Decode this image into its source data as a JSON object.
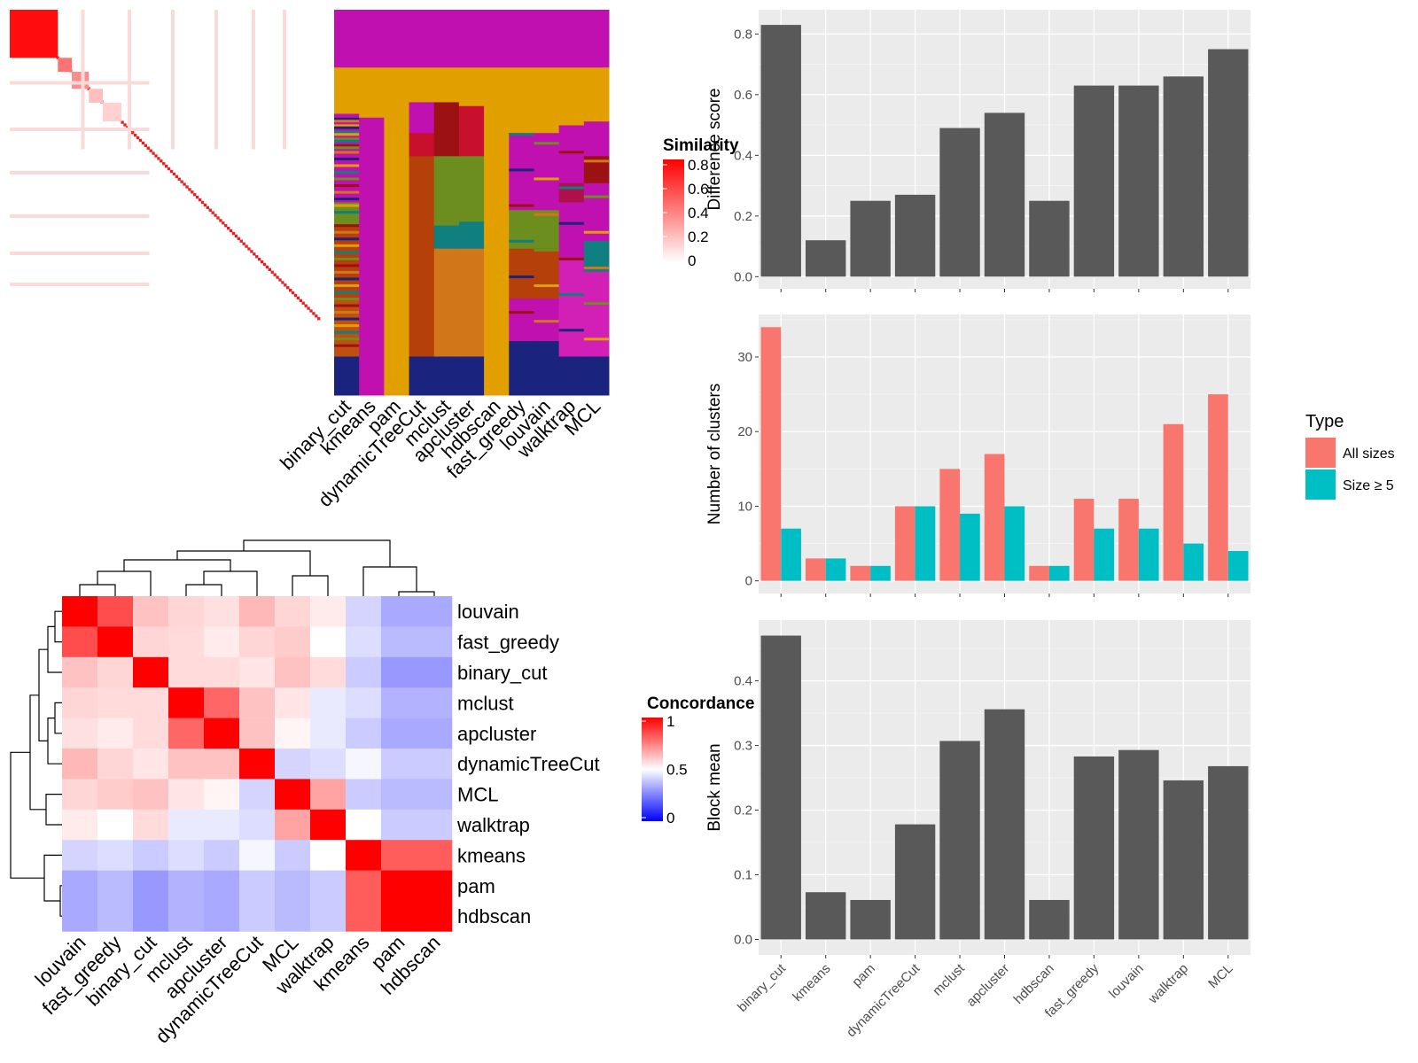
{
  "chart_data": [
    {
      "type": "heatmap",
      "title": "",
      "description_role": "similarity-matrix",
      "legend_title": "Similarity",
      "legend_ticks": [
        "0.8",
        "0.6",
        "0.4",
        "0.2",
        "0"
      ],
      "n_cells": 120,
      "column_labels": []
    },
    {
      "type": "heatmap",
      "description_role": "cluster-assignments",
      "columns": [
        "binary_cut",
        "kmeans",
        "pam",
        "dynamicTreeCut",
        "mclust",
        "apcluster",
        "hdbscan",
        "fast_greedy",
        "louvain",
        "walktrap",
        "MCL"
      ]
    },
    {
      "type": "heatmap",
      "description_role": "concordance",
      "legend_title": "Concordance",
      "legend_ticks": [
        "1",
        "0.5",
        "0"
      ],
      "row_labels": [
        "louvain",
        "fast_greedy",
        "binary_cut",
        "mclust",
        "apcluster",
        "dynamicTreeCut",
        "MCL",
        "walktrap",
        "kmeans",
        "pam",
        "hdbscan"
      ],
      "column_labels": [
        "louvain",
        "fast_greedy",
        "binary_cut",
        "mclust",
        "apcluster",
        "dynamicTreeCut",
        "MCL",
        "walktrap",
        "kmeans",
        "pam",
        "hdbscan"
      ],
      "matrix": [
        [
          1.0,
          0.85,
          0.62,
          0.58,
          0.56,
          0.64,
          0.58,
          0.54,
          0.4,
          0.3,
          0.3
        ],
        [
          0.85,
          1.0,
          0.58,
          0.57,
          0.54,
          0.58,
          0.6,
          0.5,
          0.42,
          0.34,
          0.34
        ],
        [
          0.62,
          0.58,
          1.0,
          0.57,
          0.57,
          0.55,
          0.62,
          0.57,
          0.38,
          0.26,
          0.26
        ],
        [
          0.58,
          0.57,
          0.57,
          1.0,
          0.8,
          0.62,
          0.55,
          0.45,
          0.42,
          0.32,
          0.32
        ],
        [
          0.56,
          0.54,
          0.57,
          0.8,
          1.0,
          0.62,
          0.52,
          0.45,
          0.38,
          0.3,
          0.3
        ],
        [
          0.64,
          0.58,
          0.55,
          0.62,
          0.62,
          1.0,
          0.4,
          0.42,
          0.48,
          0.38,
          0.38
        ],
        [
          0.58,
          0.6,
          0.62,
          0.55,
          0.52,
          0.4,
          1.0,
          0.68,
          0.38,
          0.34,
          0.34
        ],
        [
          0.54,
          0.5,
          0.57,
          0.45,
          0.45,
          0.42,
          0.68,
          1.0,
          0.5,
          0.38,
          0.38
        ],
        [
          0.4,
          0.42,
          0.38,
          0.42,
          0.38,
          0.48,
          0.38,
          0.5,
          1.0,
          0.82,
          0.82
        ],
        [
          0.3,
          0.34,
          0.26,
          0.32,
          0.3,
          0.38,
          0.34,
          0.38,
          0.82,
          1.0,
          1.0
        ],
        [
          0.3,
          0.34,
          0.26,
          0.32,
          0.3,
          0.38,
          0.34,
          0.38,
          0.82,
          1.0,
          1.0
        ]
      ]
    },
    {
      "type": "bar",
      "categories": [
        "binary_cut",
        "kmeans",
        "pam",
        "dynamicTreeCut",
        "mclust",
        "apcluster",
        "hdbscan",
        "fast_greedy",
        "louvain",
        "walktrap",
        "MCL"
      ],
      "values": [
        0.83,
        0.12,
        0.25,
        0.27,
        0.49,
        0.54,
        0.25,
        0.63,
        0.63,
        0.66,
        0.75
      ],
      "ylabel": "Difference score",
      "ylim": [
        -0.04,
        0.88
      ],
      "yticks": [
        "0.0",
        "0.2",
        "0.4",
        "0.6",
        "0.8"
      ],
      "grid": true
    },
    {
      "type": "bar",
      "categories": [
        "binary_cut",
        "kmeans",
        "pam",
        "dynamicTreeCut",
        "mclust",
        "apcluster",
        "hdbscan",
        "fast_greedy",
        "louvain",
        "walktrap",
        "MCL"
      ],
      "series": [
        {
          "name": "All sizes",
          "values": [
            34,
            3,
            2,
            10,
            15,
            17,
            2,
            11,
            11,
            21,
            25
          ]
        },
        {
          "name": "Size ≥ 5",
          "values": [
            7,
            3,
            2,
            10,
            9,
            10,
            2,
            7,
            7,
            5,
            4
          ]
        }
      ],
      "ylabel": "Number of clusters",
      "ylim": [
        -1.7,
        35.7
      ],
      "yticks": [
        "0",
        "10",
        "20",
        "30"
      ],
      "legend_title": "Type",
      "legend_position": "right",
      "colors": [
        "#f8766d",
        "#00bfc4"
      ],
      "grid": true
    },
    {
      "type": "bar",
      "categories": [
        "binary_cut",
        "kmeans",
        "pam",
        "dynamicTreeCut",
        "mclust",
        "apcluster",
        "hdbscan",
        "fast_greedy",
        "louvain",
        "walktrap",
        "MCL"
      ],
      "values": [
        0.47,
        0.073,
        0.061,
        0.178,
        0.307,
        0.356,
        0.061,
        0.283,
        0.293,
        0.246,
        0.268
      ],
      "ylabel": "Block mean",
      "ylim": [
        -0.024,
        0.494
      ],
      "yticks": [
        "0.0",
        "0.1",
        "0.2",
        "0.3",
        "0.4"
      ],
      "grid": true
    }
  ],
  "colors": {
    "panel_bg": "#ebebeb",
    "bar_gray": "#595959",
    "high": "#ff0000",
    "mid": "#ffffff",
    "low": "#0000ff"
  }
}
